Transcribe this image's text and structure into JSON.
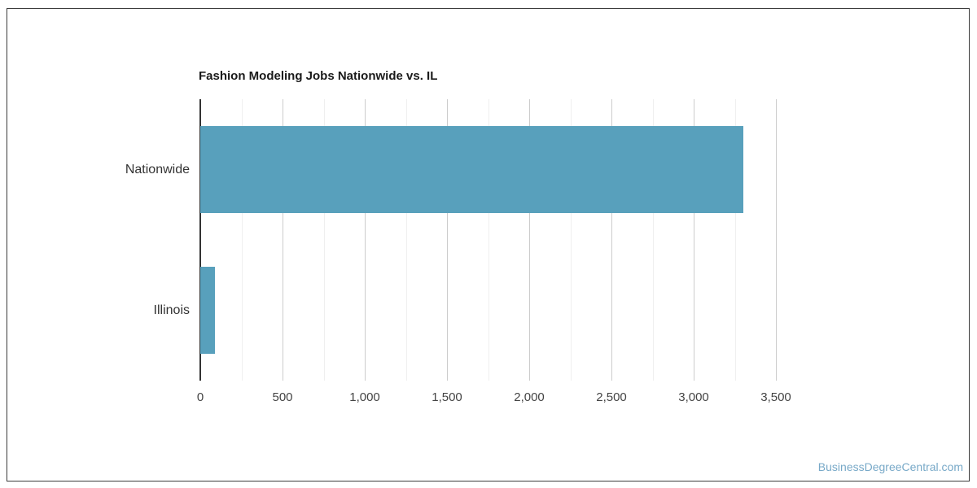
{
  "chart_data": {
    "type": "bar",
    "orientation": "horizontal",
    "title": "Fashion Modeling Jobs Nationwide vs. IL",
    "categories": [
      "Nationwide",
      "Illinois"
    ],
    "values": [
      3300,
      90
    ],
    "xlabel": "",
    "ylabel": "",
    "xlim": [
      0,
      3500
    ],
    "x_tick_values": [
      0,
      500,
      1000,
      1500,
      2000,
      2500,
      3000,
      3500
    ],
    "x_tick_labels": [
      "0",
      "500",
      "1,000",
      "1,500",
      "2,000",
      "2,500",
      "3,000",
      "3,500"
    ],
    "minor_gridline_step": 250,
    "grid": true,
    "legend": "none",
    "bar_color": "#58a0bc",
    "axis_color": "#333333",
    "major_gridline_color": "#cccccc",
    "minor_gridline_color": "#efefef"
  },
  "watermark": {
    "text": "BusinessDegreeCentral.com",
    "color": "#78a9c8"
  }
}
